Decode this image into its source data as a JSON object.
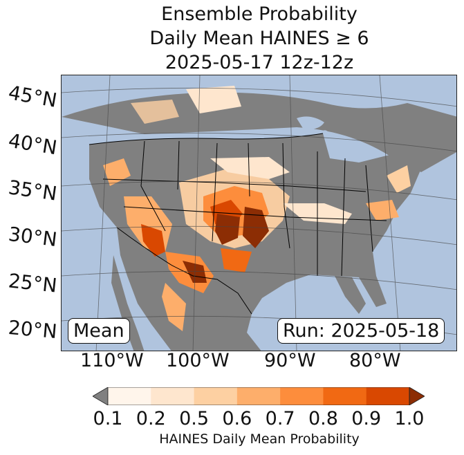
{
  "title": {
    "line1": "Ensemble Probability",
    "line2": "Daily Mean HAINES ≥ 6",
    "line3": "2025-05-17 12z-12z"
  },
  "map": {
    "latitude_labels": [
      "45°N",
      "40°N",
      "35°N",
      "30°N",
      "25°N",
      "20°N"
    ],
    "longitude_labels": [
      "110°W",
      "100°W",
      "90°W",
      "80°W"
    ],
    "ocean_color": "#b0c4de",
    "land_color": "#808080",
    "border_color": "#000000"
  },
  "annotations": {
    "left_box": "Mean",
    "right_box": "Run: 2025-05-18"
  },
  "colorbar": {
    "ticks": [
      "0.1",
      "0.2",
      "0.5",
      "0.6",
      "0.7",
      "0.8",
      "0.9",
      "1.0"
    ],
    "colors": [
      "#fff5eb",
      "#fee6ce",
      "#fdd0a2",
      "#fdae6b",
      "#fd8d3c",
      "#f16913",
      "#d94801",
      "#8c2d04"
    ],
    "under_color": "#808080",
    "over_color": "#8c2d04",
    "label": "HAINES Daily Mean Probability"
  }
}
